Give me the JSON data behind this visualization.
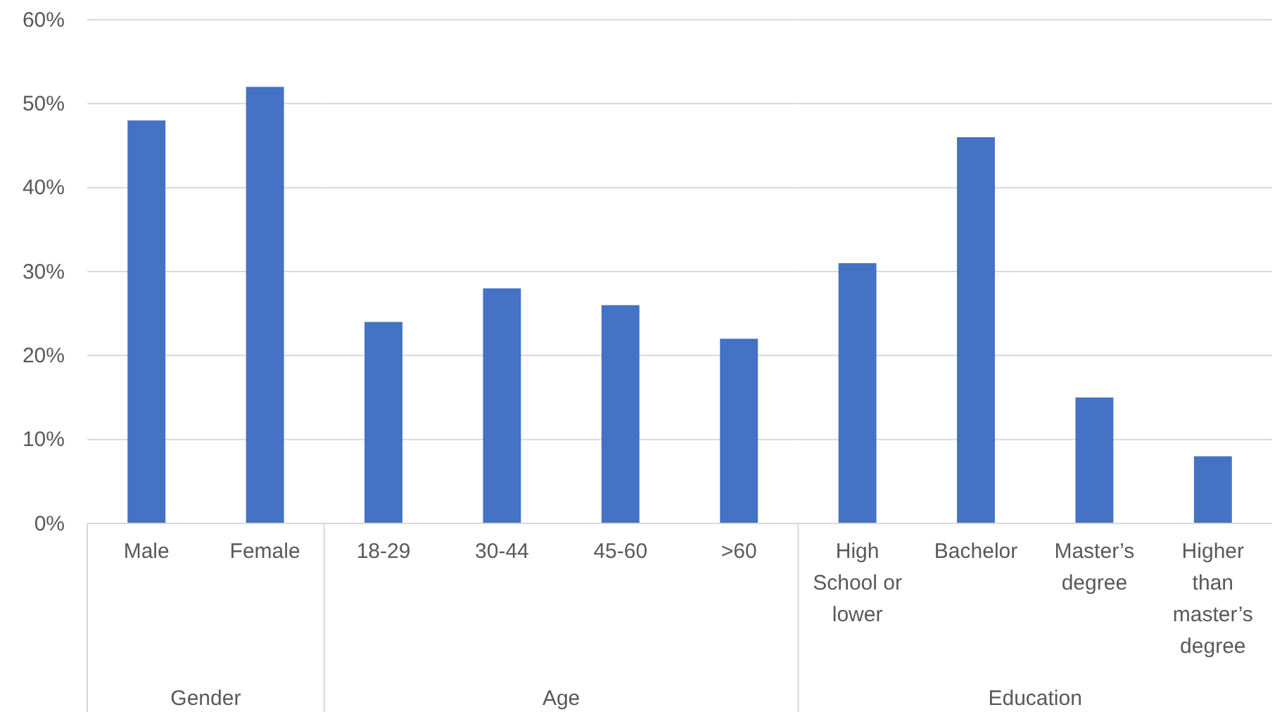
{
  "chart_data": [
    {
      "type": "bar",
      "xlabel": "Gender",
      "categories": [
        "Male",
        "Female"
      ],
      "values": [
        48,
        52
      ],
      "color": "#4472c4",
      "ylim": [
        0,
        60
      ],
      "yticks": [
        {
          "value": 0,
          "label": "0%"
        },
        {
          "value": 10,
          "label": "10%"
        },
        {
          "value": 20,
          "label": "20%"
        },
        {
          "value": 30,
          "label": "30%"
        },
        {
          "value": 40,
          "label": "40%"
        },
        {
          "value": 50,
          "label": "50%"
        },
        {
          "value": 60,
          "label": "60%"
        }
      ],
      "grid": "y"
    },
    {
      "type": "bar",
      "xlabel": "Age",
      "categories": [
        "18-29",
        "30-44",
        "45-60",
        ">60"
      ],
      "values": [
        24,
        28,
        26,
        22
      ],
      "color": "#4472c4",
      "ylim": [
        0,
        60
      ],
      "yticks": [
        {
          "value": 0,
          "label": null
        },
        {
          "value": 10,
          "label": null
        },
        {
          "value": 20,
          "label": null
        },
        {
          "value": 30,
          "label": null
        },
        {
          "value": 40,
          "label": null
        },
        {
          "value": 50,
          "label": null
        },
        {
          "value": 60,
          "label": null
        }
      ],
      "grid": "y",
      "tick_labels": "x"
    },
    {
      "type": "bar",
      "xlabel": "Education",
      "categories": [
        "High School or lower",
        "Bachelor",
        "Master’s degree",
        "Higher than master’s degree"
      ],
      "values": [
        31,
        46,
        15,
        8
      ],
      "color": "#4472c4",
      "ylim": [
        0,
        60
      ],
      "yticks": [
        {
          "value": 0,
          "label": null
        },
        {
          "value": 10,
          "label": null
        },
        {
          "value": 20,
          "label": null
        },
        {
          "value": 30,
          "label": null
        },
        {
          "value": 40,
          "label": null
        },
        {
          "value": 50,
          "label": null
        },
        {
          "value": 60,
          "label": null
        }
      ],
      "grid": "y",
      "tick_labels": "x"
    }
  ]
}
